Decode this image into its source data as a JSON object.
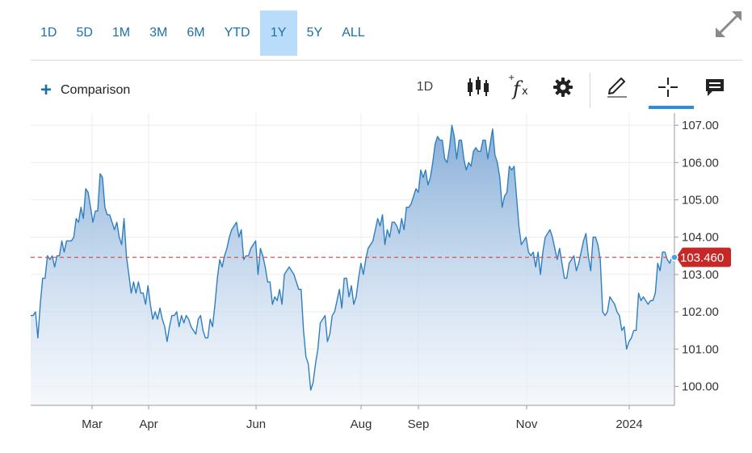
{
  "range_buttons": [
    "1D",
    "5D",
    "1M",
    "3M",
    "6M",
    "YTD",
    "1Y",
    "5Y",
    "ALL"
  ],
  "active_range": "1Y",
  "comparison_label": "Comparison",
  "toolbar": {
    "interval": "1D"
  },
  "icons": [
    "expand-icon",
    "plus-icon",
    "candlestick-icon",
    "fx-icon",
    "gear-icon",
    "pencil-icon",
    "crosshair-icon",
    "comment-icon"
  ],
  "colors": {
    "accent": "#1e6fa8",
    "line": "#2f7fbf",
    "price_tag": "#c62828",
    "reference_line": "#d9534f",
    "active_range_bg": "#b9dcfb"
  },
  "chart_data": {
    "type": "area",
    "x_tick_labels": [
      "Mar",
      "Apr",
      "Jun",
      "Aug",
      "Sep",
      "Nov",
      "2024"
    ],
    "y_tick_labels": [
      "100.00",
      "101.00",
      "102.00",
      "103.00",
      "104.00",
      "105.00",
      "106.00",
      "107.00"
    ],
    "ylim": [
      99.5,
      107.2
    ],
    "last_price_label": "103.460",
    "last_price": 103.46,
    "grid": true,
    "series": [
      {
        "values": [
          101.9,
          101.9,
          102.0,
          101.3,
          102.2,
          102.9,
          102.9,
          103.5,
          103.4,
          103.5,
          103.2,
          103.5,
          103.5,
          103.9,
          103.6,
          103.9,
          103.9,
          103.9,
          104.0,
          104.5,
          104.4,
          104.8,
          104.5,
          105.3,
          105.2,
          104.8,
          104.4,
          104.7,
          104.7,
          105.7,
          105.6,
          104.8,
          104.6,
          104.6,
          104.4,
          104.2,
          104.4,
          104.0,
          103.8,
          104.5,
          103.5,
          103.0,
          102.5,
          102.8,
          102.5,
          102.8,
          102.5,
          102.5,
          102.2,
          102.7,
          102.2,
          101.8,
          102.0,
          101.8,
          102.1,
          101.8,
          101.6,
          101.2,
          101.6,
          101.9,
          101.9,
          102.0,
          101.6,
          101.9,
          101.7,
          101.9,
          101.8,
          101.6,
          101.5,
          101.4,
          101.8,
          101.9,
          101.5,
          101.3,
          101.3,
          101.8,
          101.6,
          102.2,
          102.9,
          103.4,
          103.2,
          103.5,
          103.7,
          104.0,
          104.2,
          104.3,
          104.4,
          104.0,
          104.2,
          103.4,
          103.5,
          103.5,
          103.7,
          103.8,
          103.9,
          103.0,
          103.7,
          103.5,
          103.2,
          102.8,
          102.8,
          102.2,
          102.4,
          102.3,
          102.6,
          102.2,
          103.0,
          103.1,
          103.2,
          103.1,
          103.0,
          102.8,
          102.6,
          102.6,
          101.5,
          100.8,
          100.6,
          99.9,
          100.1,
          100.6,
          101.0,
          101.7,
          101.8,
          101.9,
          101.2,
          101.4,
          101.9,
          102.0,
          102.3,
          102.6,
          102.1,
          102.9,
          102.9,
          102.4,
          102.7,
          102.2,
          102.4,
          102.9,
          103.3,
          103.0,
          103.4,
          103.7,
          103.8,
          103.9,
          104.2,
          104.5,
          104.3,
          104.6,
          103.8,
          104.2,
          104.0,
          104.4,
          104.4,
          104.3,
          104.1,
          104.5,
          104.2,
          104.8,
          104.8,
          104.9,
          105.1,
          105.3,
          105.2,
          105.8,
          105.6,
          105.8,
          105.4,
          105.6,
          106.0,
          106.5,
          106.7,
          106.6,
          106.6,
          106.1,
          106.0,
          106.4,
          107.0,
          106.7,
          106.1,
          106.6,
          106.6,
          106.1,
          105.8,
          106.0,
          105.9,
          106.3,
          106.4,
          106.3,
          106.3,
          106.6,
          106.6,
          106.1,
          106.5,
          106.9,
          106.2,
          106.0,
          105.6,
          104.8,
          105.1,
          105.2,
          105.9,
          105.8,
          105.9,
          105.1,
          104.3,
          103.8,
          103.9,
          104.0,
          103.6,
          103.5,
          103.6,
          103.2,
          103.6,
          103.0,
          103.6,
          104.0,
          104.1,
          104.2,
          104.0,
          103.7,
          103.4,
          103.7,
          103.3,
          102.9,
          102.9,
          103.3,
          103.4,
          103.5,
          103.1,
          103.3,
          103.6,
          103.9,
          104.1,
          103.5,
          103.1,
          104.0,
          104.0,
          103.8,
          103.4,
          102.0,
          101.9,
          102.0,
          102.4,
          102.3,
          102.2,
          102.0,
          101.9,
          101.5,
          101.6,
          101.0,
          101.2,
          101.3,
          101.5,
          101.5,
          102.5,
          102.3,
          102.4,
          102.3,
          102.2,
          102.3,
          102.3,
          102.5,
          103.3,
          103.1,
          103.6,
          103.6,
          103.4,
          103.3,
          103.5,
          103.46
        ]
      }
    ]
  }
}
